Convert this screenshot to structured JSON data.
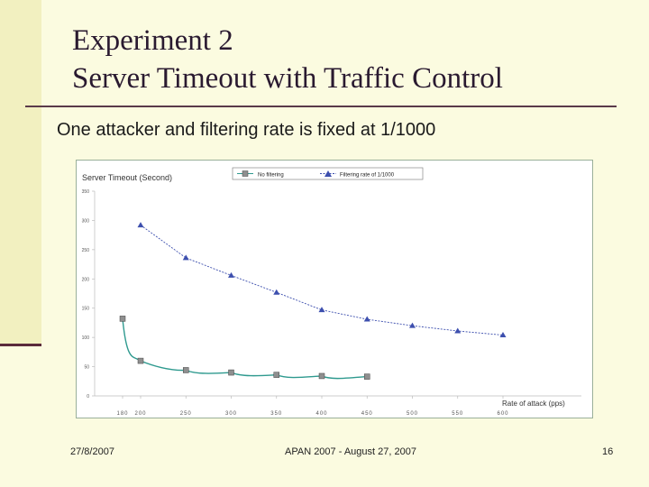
{
  "slide": {
    "title_line1": "Experiment 2",
    "title_line2": "Server Timeout with Traffic Control",
    "subtitle": "One attacker and filtering rate is fixed at 1/1000",
    "footer_date": "27/8/2007",
    "footer_center": "APAN 2007 - August 27, 2007",
    "page_number": "16"
  },
  "colors": {
    "background": "#fbfbe0",
    "series_no_filtering": "#2f9a8f",
    "series_filtering": "#3d4fae"
  },
  "chart_data": {
    "type": "line",
    "title": "Server Timeout (Second)",
    "xlabel": "Rate of attack (pps)",
    "ylabel": "",
    "ylim": [
      0,
      350
    ],
    "y_ticks": [
      0,
      50,
      100,
      150,
      200,
      250,
      300,
      350
    ],
    "x_tick_labels": [
      "180",
      "200",
      "250",
      "300",
      "350",
      "400",
      "450",
      "500",
      "550",
      "600"
    ],
    "grid": false,
    "legend_position": "top",
    "series": [
      {
        "name": "No filtering",
        "marker": "square",
        "points": [
          [
            180,
            132
          ],
          [
            200,
            60
          ],
          [
            250,
            44
          ],
          [
            300,
            40
          ],
          [
            350,
            36
          ],
          [
            400,
            34
          ],
          [
            450,
            33
          ]
        ]
      },
      {
        "name": "Filtering rate of 1/1000",
        "marker": "triangle",
        "points": [
          [
            200,
            292
          ],
          [
            250,
            236
          ],
          [
            300,
            206
          ],
          [
            350,
            177
          ],
          [
            400,
            147
          ],
          [
            450,
            131
          ],
          [
            500,
            120
          ],
          [
            550,
            111
          ],
          [
            600,
            104
          ]
        ]
      }
    ]
  }
}
